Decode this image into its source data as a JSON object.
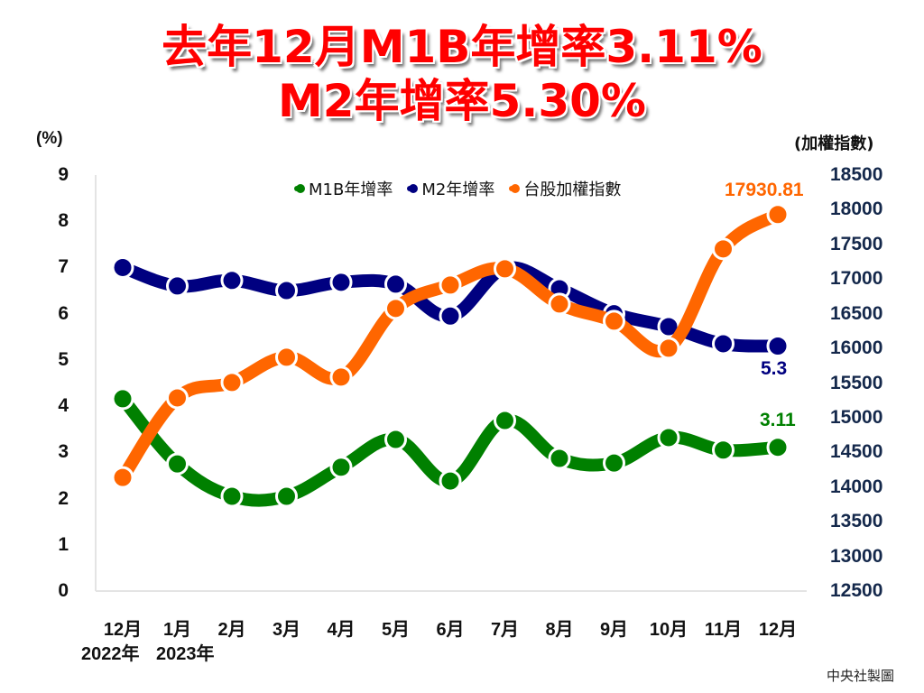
{
  "title": {
    "line1": "去年12月M1B年增率3.11%",
    "line2": "M2年增率5.30%",
    "color": "#ff0000"
  },
  "axes": {
    "left_unit": "(%)",
    "right_unit": "(加權指數)",
    "left_ticks": [
      "9",
      "8",
      "7",
      "6",
      "5",
      "4",
      "3",
      "2",
      "1",
      "0"
    ],
    "right_ticks": [
      "18500",
      "18000",
      "17500",
      "17000",
      "16500",
      "16000",
      "15500",
      "15000",
      "14500",
      "14000",
      "13500",
      "13000",
      "12500"
    ],
    "x_ticks": [
      "12月",
      "1月",
      "2月",
      "3月",
      "4月",
      "5月",
      "6月",
      "7月",
      "8月",
      "9月",
      "10月",
      "11月",
      "12月"
    ],
    "year_labels": [
      "2022年",
      "2023年"
    ]
  },
  "legend": [
    {
      "label": "M1B年增率",
      "color": "#008000",
      "icon": "dot-marker-icon"
    },
    {
      "label": "M2年增率",
      "color": "#000080",
      "icon": "dot-marker-icon"
    },
    {
      "label": "台股加權指數",
      "color": "#ff6600",
      "icon": "dot-marker-icon"
    }
  ],
  "data_labels": {
    "taiex_last": "17930.81",
    "m2_last": "5.3",
    "m1b_last": "3.11"
  },
  "source": "中央社製圖",
  "chart_data": {
    "type": "line",
    "title": "去年12月M1B年增率3.11% M2年增率5.30%",
    "xlabel": "",
    "ylabel": "(%)",
    "y2label": "(加權指數)",
    "categories": [
      "2022年12月",
      "2023年1月",
      "2月",
      "3月",
      "4月",
      "5月",
      "6月",
      "7月",
      "8月",
      "9月",
      "10月",
      "11月",
      "12月"
    ],
    "ylim": [
      0,
      9
    ],
    "y2lim": [
      12500,
      18500
    ],
    "grid": false,
    "legend_position": "top",
    "series": [
      {
        "name": "M1B年增率",
        "axis": "left",
        "color": "#008000",
        "values": [
          4.16,
          2.75,
          2.05,
          2.05,
          2.68,
          3.28,
          2.38,
          3.69,
          2.87,
          2.77,
          3.32,
          3.05,
          3.11
        ]
      },
      {
        "name": "M2年增率",
        "axis": "left",
        "color": "#000080",
        "values": [
          7.0,
          6.6,
          6.72,
          6.5,
          6.68,
          6.64,
          5.95,
          6.98,
          6.54,
          6.0,
          5.72,
          5.35,
          5.3
        ]
      },
      {
        "name": "台股加權指數",
        "axis": "right",
        "color": "#ff6600",
        "values": [
          14138,
          15286,
          15508,
          15872,
          15586,
          16576,
          16914,
          17148,
          16640,
          16393,
          16003,
          17435,
          17930.81
        ]
      }
    ],
    "annotations": [
      {
        "series": "台股加權指數",
        "index": 12,
        "text": "17930.81"
      },
      {
        "series": "M2年增率",
        "index": 12,
        "text": "5.3"
      },
      {
        "series": "M1B年增率",
        "index": 12,
        "text": "3.11"
      }
    ]
  }
}
